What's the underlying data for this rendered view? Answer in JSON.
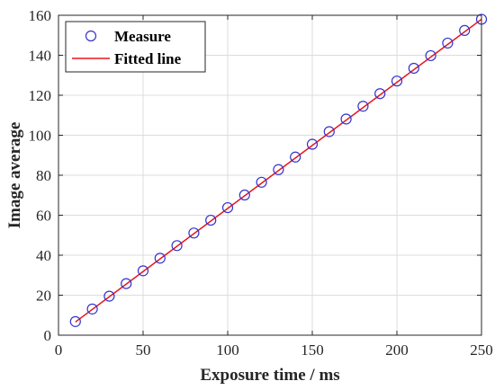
{
  "chart_data": {
    "type": "scatter",
    "title": "",
    "xlabel": "Exposure time / ms",
    "ylabel": "Image average",
    "xlim": [
      0,
      250
    ],
    "ylim": [
      0,
      160
    ],
    "xticks": [
      0,
      50,
      100,
      150,
      200,
      250
    ],
    "yticks": [
      0,
      20,
      40,
      60,
      80,
      100,
      120,
      140,
      160
    ],
    "grid": true,
    "legend_position": "top-left",
    "series": [
      {
        "name": "Measure",
        "kind": "markers",
        "marker": "circle",
        "color": "#3333cc",
        "x": [
          10,
          20,
          30,
          40,
          50,
          60,
          70,
          80,
          90,
          100,
          110,
          120,
          130,
          140,
          150,
          160,
          170,
          180,
          190,
          200,
          210,
          220,
          230,
          240,
          250
        ],
        "y": [
          6.8,
          13.1,
          19.5,
          25.8,
          32.2,
          38.5,
          44.8,
          51.1,
          57.5,
          63.8,
          70.1,
          76.5,
          82.8,
          89.1,
          95.5,
          101.8,
          108.1,
          114.5,
          120.8,
          127.1,
          133.5,
          139.8,
          146.1,
          152.4,
          158.0
        ]
      },
      {
        "name": "Fitted line",
        "kind": "line",
        "color": "#e8131b",
        "x": [
          10,
          250
        ],
        "y": [
          6.6,
          158.0
        ]
      }
    ]
  }
}
